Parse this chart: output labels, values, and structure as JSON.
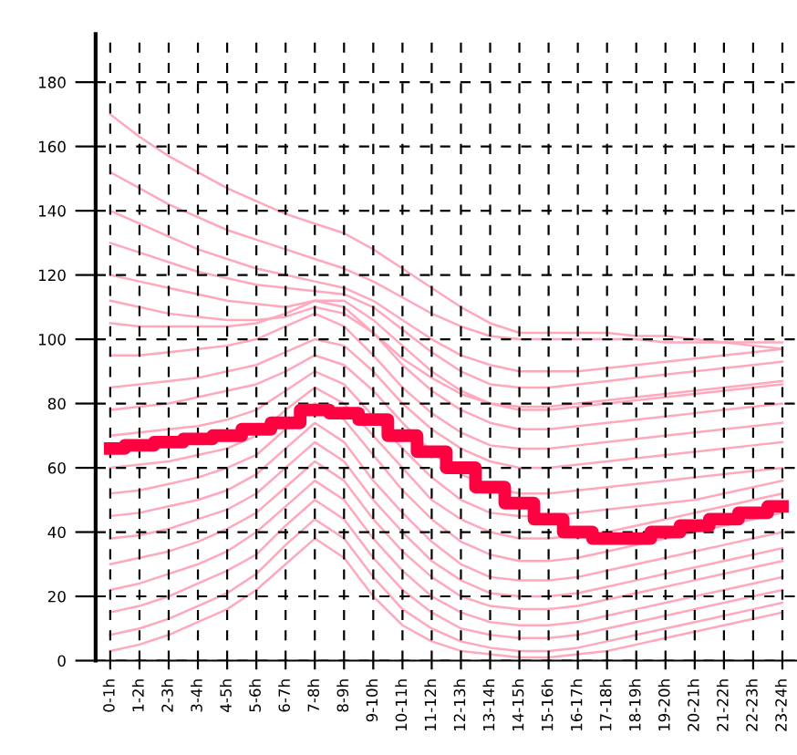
{
  "chart_data": {
    "type": "line",
    "categories": [
      "0-1h",
      "1-2h",
      "2-3h",
      "3-4h",
      "4-5h",
      "5-6h",
      "6-7h",
      "7-8h",
      "8-9h",
      "9-10h",
      "10-11h",
      "11-12h",
      "12-13h",
      "13-14h",
      "14-15h",
      "15-16h",
      "16-17h",
      "17-18h",
      "18-19h",
      "19-20h",
      "20-21h",
      "21-22h",
      "22-23h",
      "23-24h"
    ],
    "ylim": [
      0,
      195
    ],
    "yticks": [
      0,
      20,
      40,
      60,
      80,
      100,
      120,
      140,
      160,
      180
    ],
    "grid": true,
    "line_style": "solid",
    "marker": "none",
    "series": [
      {
        "color": "#ffa8bb",
        "values": [
          170,
          163,
          157,
          152,
          147,
          143,
          139,
          136,
          133,
          128,
          122,
          116,
          110,
          105,
          102,
          102,
          102,
          102,
          101,
          101,
          100,
          99,
          98,
          97
        ]
      },
      {
        "color": "#ffa8bb",
        "values": [
          152,
          147,
          142,
          138,
          134,
          131,
          128,
          125,
          122,
          118,
          113,
          108,
          104,
          101,
          100,
          100,
          100,
          100,
          100,
          99,
          99,
          99,
          99,
          99
        ]
      },
      {
        "color": "#ffa8bb",
        "values": [
          140,
          136,
          132,
          128,
          125,
          122,
          120,
          118,
          116,
          112,
          106,
          100,
          95,
          92,
          90,
          90,
          90,
          91,
          92,
          93,
          94,
          95,
          96,
          97
        ]
      },
      {
        "color": "#ffa8bb",
        "values": [
          130,
          127,
          124,
          121,
          119,
          117,
          116,
          115,
          114,
          110,
          103,
          96,
          90,
          86,
          85,
          85,
          86,
          87,
          88,
          89,
          90,
          91,
          92,
          93
        ]
      },
      {
        "color": "#ffa8bb",
        "values": [
          120,
          118,
          116,
          114,
          112,
          111,
          110,
          112,
          112,
          106,
          98,
          90,
          84,
          80,
          78,
          78,
          79,
          80,
          81,
          82,
          83,
          84,
          85,
          86
        ]
      },
      {
        "color": "#ffa8bb",
        "values": [
          112,
          110,
          108,
          107,
          106,
          106,
          107,
          110,
          108,
          102,
          94,
          88,
          83,
          80,
          79,
          79,
          80,
          81,
          82,
          83,
          84,
          85,
          86,
          87
        ]
      },
      {
        "color": "#ffa8bb",
        "values": [
          105,
          104,
          104,
          104,
          104,
          105,
          108,
          112,
          110,
          102,
          92,
          84,
          78,
          74,
          72,
          72,
          73,
          74,
          75,
          76,
          77,
          78,
          79,
          80
        ]
      },
      {
        "color": "#ffa8bb",
        "values": [
          95,
          95,
          96,
          97,
          98,
          100,
          104,
          108,
          104,
          95,
          85,
          77,
          71,
          67,
          66,
          66,
          67,
          68,
          69,
          70,
          71,
          72,
          73,
          74
        ]
      },
      {
        "color": "#ffa8bb",
        "values": [
          85,
          86,
          87,
          88,
          90,
          92,
          96,
          100,
          98,
          90,
          80,
          72,
          66,
          62,
          60,
          60,
          61,
          62,
          63,
          64,
          65,
          66,
          67,
          68
        ]
      },
      {
        "color": "#ffa8bb",
        "values": [
          78,
          79,
          80,
          82,
          84,
          86,
          90,
          95,
          92,
          84,
          74,
          65,
          58,
          54,
          52,
          52,
          53,
          54,
          55,
          56,
          57,
          58,
          59,
          60
        ]
      },
      {
        "color": "#ffa8bb",
        "values": [
          70,
          71,
          72,
          73,
          75,
          78,
          84,
          90,
          86,
          76,
          66,
          57,
          50,
          46,
          45,
          45,
          46,
          47,
          48,
          49,
          50,
          52,
          54,
          56
        ]
      },
      {
        "color": "#ffa8bb",
        "values": [
          60,
          61,
          62,
          64,
          66,
          70,
          78,
          85,
          80,
          70,
          60,
          50,
          44,
          40,
          38,
          38,
          39,
          40,
          42,
          44,
          46,
          48,
          50,
          52
        ]
      },
      {
        "color": "#ffa8bb",
        "values": [
          52,
          53,
          55,
          57,
          60,
          64,
          72,
          80,
          75,
          64,
          53,
          44,
          37,
          33,
          31,
          31,
          32,
          34,
          36,
          38,
          40,
          42,
          44,
          46
        ]
      },
      {
        "color": "#ffa8bb",
        "values": [
          45,
          46,
          48,
          50,
          53,
          58,
          66,
          74,
          68,
          56,
          46,
          37,
          30,
          26,
          25,
          25,
          26,
          28,
          30,
          32,
          34,
          36,
          38,
          40
        ]
      },
      {
        "color": "#ffa8bb",
        "values": [
          38,
          39,
          41,
          44,
          47,
          52,
          60,
          68,
          62,
          50,
          40,
          31,
          25,
          21,
          20,
          20,
          21,
          23,
          25,
          27,
          29,
          31,
          33,
          35
        ]
      },
      {
        "color": "#ffa8bb",
        "values": [
          30,
          32,
          34,
          37,
          41,
          46,
          54,
          62,
          56,
          44,
          34,
          26,
          20,
          17,
          16,
          16,
          17,
          19,
          21,
          23,
          25,
          27,
          29,
          31
        ]
      },
      {
        "color": "#ffa8bb",
        "values": [
          22,
          24,
          27,
          30,
          34,
          40,
          48,
          56,
          50,
          38,
          28,
          20,
          15,
          12,
          11,
          11,
          12,
          14,
          16,
          18,
          20,
          22,
          24,
          26
        ]
      },
      {
        "color": "#ffa8bb",
        "values": [
          15,
          17,
          20,
          24,
          28,
          33,
          42,
          50,
          44,
          32,
          22,
          15,
          10,
          8,
          7,
          7,
          8,
          10,
          12,
          14,
          16,
          18,
          20,
          22
        ]
      },
      {
        "color": "#ffa8bb",
        "values": [
          8,
          10,
          13,
          17,
          21,
          27,
          36,
          44,
          38,
          26,
          16,
          10,
          6,
          4,
          3,
          3,
          4,
          6,
          8,
          10,
          12,
          14,
          16,
          18
        ]
      },
      {
        "color": "#ffa8bb",
        "values": [
          3,
          5,
          8,
          12,
          16,
          22,
          30,
          38,
          32,
          20,
          11,
          6,
          3,
          2,
          1,
          1,
          2,
          3,
          5,
          7,
          9,
          11,
          13,
          15
        ]
      },
      {
        "type": "step",
        "color": "#ff0040",
        "values": [
          66,
          67,
          68,
          69,
          70,
          72,
          74,
          78,
          77,
          75,
          70,
          65,
          60,
          54,
          49,
          44,
          40,
          38,
          38,
          40,
          42,
          44,
          46,
          48
        ]
      }
    ]
  }
}
